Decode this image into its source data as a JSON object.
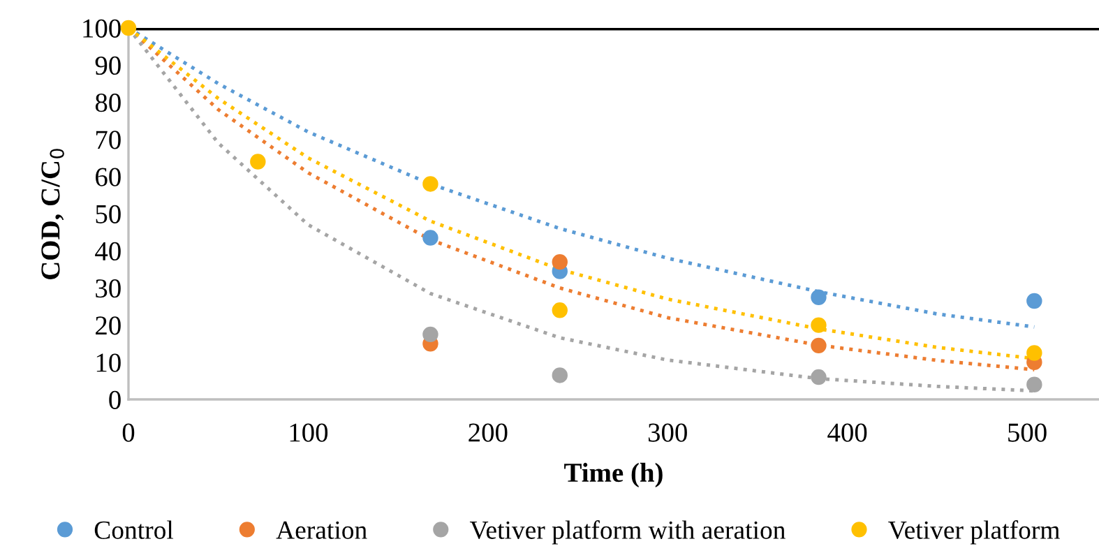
{
  "chart_data": {
    "type": "scatter",
    "xlabel": "Time (h)",
    "ylabel": "COD, C/C$_{0}$",
    "xlim": [
      0,
      540
    ],
    "xticks": [
      0,
      100,
      200,
      300,
      400,
      500
    ],
    "ylim": [
      0,
      100
    ],
    "yticks": [
      0,
      10,
      20,
      30,
      40,
      50,
      60,
      70,
      80,
      90,
      100
    ],
    "grid": false,
    "legend": "bottom",
    "marker": "circle",
    "ref_lines": [
      {
        "axis": "y",
        "value": 100,
        "color": "#000000"
      }
    ],
    "series": [
      {
        "name": "Control",
        "color": "#5b9bd5",
        "x": [
          168,
          240,
          384,
          504
        ],
        "values": [
          43.5,
          34.5,
          27.5,
          26.5
        ]
      },
      {
        "name": "Aeration",
        "color": "#ed7d31",
        "x": [
          168,
          240,
          384,
          504
        ],
        "values": [
          15,
          37,
          14.5,
          10
        ]
      },
      {
        "name": "Vetiver platform with aeration",
        "color": "#a5a5a5",
        "x": [
          168,
          240,
          384,
          504
        ],
        "values": [
          17.5,
          6.5,
          6,
          4
        ]
      },
      {
        "name": "Vetiver platform",
        "color": "#ffc000",
        "x": [
          0,
          72,
          168,
          240,
          384,
          504
        ],
        "values": [
          100,
          64,
          58,
          24,
          20,
          12.5
        ]
      },
      {
        "type": "line",
        "line_style": "dotted",
        "marker": "none",
        "color": "#5b9bd5",
        "x": [
          0,
          50,
          100,
          168,
          240,
          300,
          384,
          450,
          504
        ],
        "values": [
          100,
          85,
          72,
          58,
          46,
          38,
          29,
          23,
          19.5
        ]
      },
      {
        "type": "line",
        "line_style": "dotted",
        "marker": "none",
        "color": "#ed7d31",
        "x": [
          0,
          50,
          100,
          168,
          240,
          300,
          384,
          450,
          504
        ],
        "values": [
          100,
          78,
          61,
          43,
          30,
          22,
          14.6,
          10.5,
          8
        ]
      },
      {
        "type": "line",
        "line_style": "dotted",
        "marker": "none",
        "color": "#a5a5a5",
        "x": [
          0,
          50,
          100,
          168,
          240,
          300,
          384,
          450,
          504
        ],
        "values": [
          100,
          69,
          47,
          28.5,
          16.6,
          10.6,
          5.6,
          3.5,
          2.3
        ]
      },
      {
        "type": "line",
        "line_style": "dotted",
        "marker": "none",
        "color": "#ffc000",
        "x": [
          0,
          50,
          100,
          168,
          240,
          300,
          384,
          450,
          504
        ],
        "values": [
          100,
          81,
          65,
          48,
          35,
          27,
          19,
          14,
          11
        ]
      }
    ]
  }
}
